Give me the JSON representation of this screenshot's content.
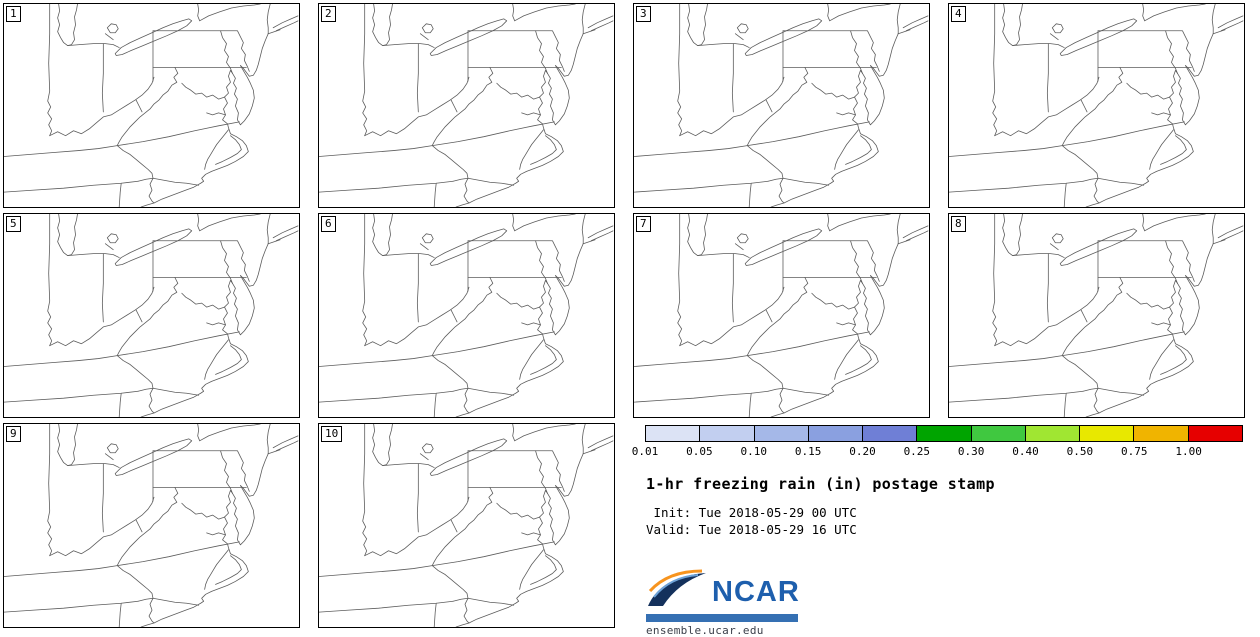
{
  "figure": {
    "title": "1-hr freezing rain (in) postage stamp",
    "init_line": " Init: Tue 2018-05-29 00 UTC",
    "valid_line": "Valid: Tue 2018-05-29 16 UTC"
  },
  "panels": [
    {
      "label": "1"
    },
    {
      "label": "2"
    },
    {
      "label": "3"
    },
    {
      "label": "4"
    },
    {
      "label": "5"
    },
    {
      "label": "6"
    },
    {
      "label": "7"
    },
    {
      "label": "8"
    },
    {
      "label": "9"
    },
    {
      "label": "10"
    }
  ],
  "colorbar": {
    "ticks": [
      "0.01",
      "0.05",
      "0.10",
      "0.15",
      "0.20",
      "0.25",
      "0.30",
      "0.40",
      "0.50",
      "0.75",
      "1.00"
    ],
    "colors": [
      "#dce3f5",
      "#c2cff0",
      "#a5b8e8",
      "#8aa0e0",
      "#6f7fd6",
      "#00a400",
      "#40c840",
      "#a0e632",
      "#e8e800",
      "#f0b400",
      "#e60000"
    ]
  },
  "logo": {
    "wordmark": "NCAR",
    "site": "ensemble.ucar.edu"
  },
  "chart_data": {
    "type": "heatmap",
    "title": "1-hr freezing rain (in) postage stamp",
    "init": "Tue 2018-05-29 00 UTC",
    "valid": "Tue 2018-05-29 16 UTC",
    "panel_labels": [
      "1",
      "2",
      "3",
      "4",
      "5",
      "6",
      "7",
      "8",
      "9",
      "10"
    ],
    "layout": "10 postage-stamp ensemble-member maps in a 4x3 grid; legend, title and NCAR logo occupy the lower-right 2 cells",
    "region": "Eastern United States: Great Lakes south to Georgia, Atlantic coast with Chesapeake Bay",
    "colorbar_ticks_in": [
      0.01,
      0.05,
      0.1,
      0.15,
      0.2,
      0.25,
      0.3,
      0.4,
      0.5,
      0.75,
      1.0
    ],
    "colorbar_colors": [
      "#dce3f5",
      "#c2cff0",
      "#a5b8e8",
      "#8aa0e0",
      "#6f7fd6",
      "#00a400",
      "#40c840",
      "#a0e632",
      "#e8e800",
      "#f0b400",
      "#e60000"
    ],
    "values_note": "All 10 ensemble member maps are blank line maps: no freezing-rain shading appears in any panel"
  }
}
